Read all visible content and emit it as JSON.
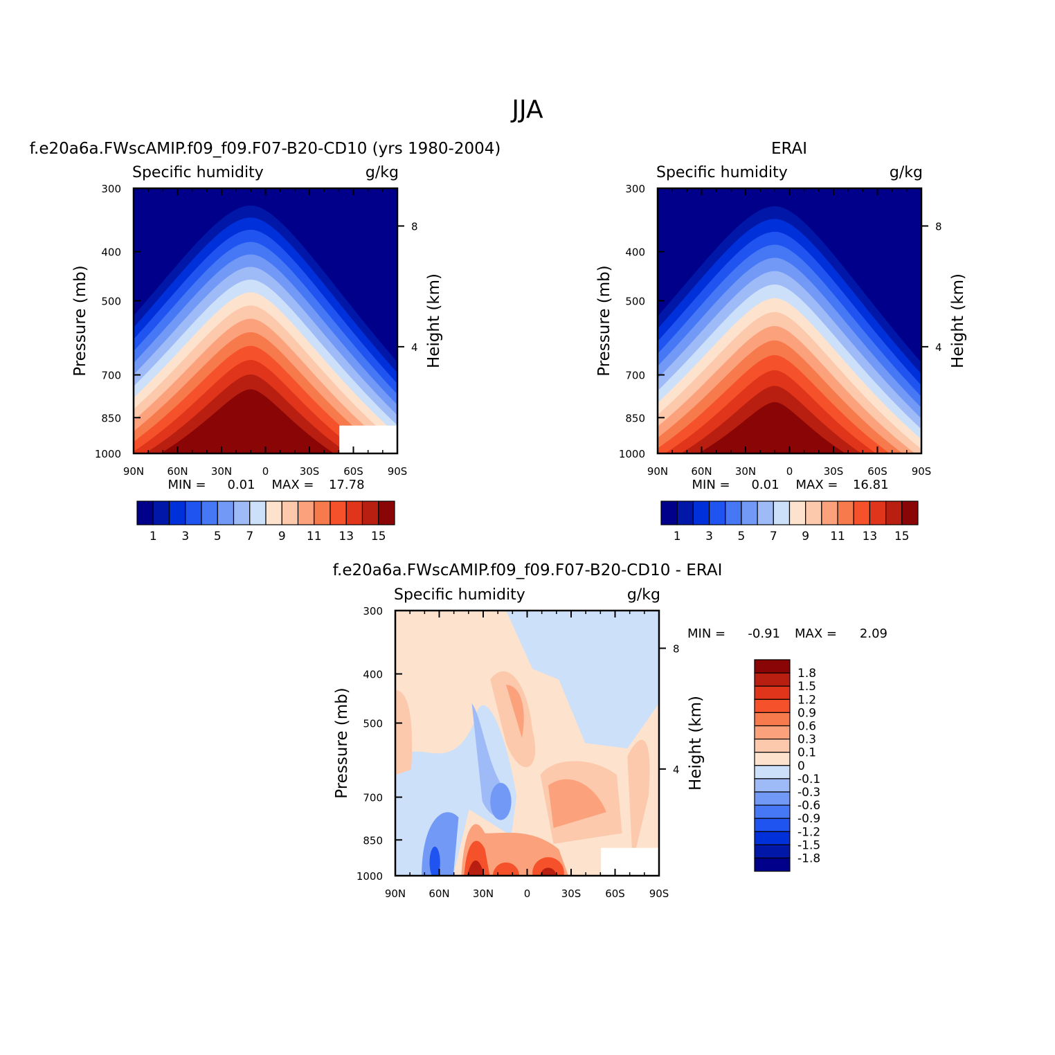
{
  "page_title": "JJA",
  "chart_data": [
    {
      "type": "heatmap",
      "id": "model",
      "title": "f.e20a6a.FWscAMIP.f09_f09.F07-B20-CD10 (yrs 1980-2004)",
      "left_subtitle": "Specific humidity",
      "right_subtitle": "g/kg",
      "ylabel": "Pressure (mb)",
      "ylabel_right": "Height (km)",
      "x_ticks": [
        "90N",
        "60N",
        "30N",
        "0",
        "30S",
        "60S",
        "90S"
      ],
      "y_ticks": [
        "300",
        "400",
        "500",
        "700",
        "850",
        "1000"
      ],
      "y_ticks_right": [
        "8",
        "4"
      ],
      "xlim": [
        90,
        -90
      ],
      "ylim": [
        1000,
        300
      ],
      "y_scale": "log",
      "stats": {
        "min_label": "MIN =",
        "min": "0.01",
        "max_label": "MAX =",
        "max": "17.78"
      },
      "colorbar": {
        "orientation": "horizontal",
        "labels": [
          "1",
          "3",
          "5",
          "7",
          "9",
          "11",
          "13",
          "15"
        ],
        "levels": [
          0,
          1,
          2,
          3,
          4,
          5,
          6,
          7,
          8,
          9,
          10,
          11,
          12,
          13,
          14,
          15,
          16
        ]
      },
      "peak_value": 17.78,
      "peak_lat": 10
    },
    {
      "type": "heatmap",
      "id": "obs",
      "title": "ERAI",
      "left_subtitle": "Specific humidity",
      "right_subtitle": "g/kg",
      "ylabel": "Pressure (mb)",
      "ylabel_right": "Height (km)",
      "x_ticks": [
        "90N",
        "60N",
        "30N",
        "0",
        "30S",
        "60S",
        "90S"
      ],
      "y_ticks": [
        "300",
        "400",
        "500",
        "700",
        "850",
        "1000"
      ],
      "y_ticks_right": [
        "8",
        "4"
      ],
      "xlim": [
        90,
        -90
      ],
      "ylim": [
        1000,
        300
      ],
      "y_scale": "log",
      "stats": {
        "min_label": "MIN =",
        "min": "0.01",
        "max_label": "MAX =",
        "max": "16.81"
      },
      "colorbar": {
        "orientation": "horizontal",
        "labels": [
          "1",
          "3",
          "5",
          "7",
          "9",
          "11",
          "13",
          "15"
        ],
        "levels": [
          0,
          1,
          2,
          3,
          4,
          5,
          6,
          7,
          8,
          9,
          10,
          11,
          12,
          13,
          14,
          15,
          16
        ]
      },
      "peak_value": 16.81,
      "peak_lat": 10
    },
    {
      "type": "heatmap",
      "id": "diff",
      "title": "f.e20a6a.FWscAMIP.f09_f09.F07-B20-CD10 - ERAI",
      "left_subtitle": "Specific humidity",
      "right_subtitle": "g/kg",
      "ylabel": "Pressure (mb)",
      "ylabel_right": "Height (km)",
      "x_ticks": [
        "90N",
        "60N",
        "30N",
        "0",
        "30S",
        "60S",
        "90S"
      ],
      "y_ticks": [
        "300",
        "400",
        "500",
        "700",
        "850",
        "1000"
      ],
      "y_ticks_right": [
        "8",
        "4"
      ],
      "xlim": [
        90,
        -90
      ],
      "ylim": [
        1000,
        300
      ],
      "y_scale": "log",
      "stats": {
        "min_label": "MIN =",
        "min": "-0.91",
        "max_label": "MAX =",
        "max": "2.09"
      },
      "colorbar": {
        "orientation": "vertical",
        "labels": [
          "1.8",
          "1.5",
          "1.2",
          "0.9",
          "0.6",
          "0.3",
          "0.1",
          "0",
          "-0.1",
          "-0.3",
          "-0.6",
          "-0.9",
          "-1.2",
          "-1.5",
          "-1.8"
        ],
        "levels": [
          -1.8,
          -1.5,
          -1.2,
          -0.9,
          -0.6,
          -0.3,
          -0.1,
          0,
          0.1,
          0.3,
          0.6,
          0.9,
          1.2,
          1.5,
          1.8
        ]
      }
    }
  ],
  "colors": {
    "model_scale": [
      "#00008a",
      "#0017a8",
      "#0030d9",
      "#1f54f0",
      "#4677f5",
      "#7299f5",
      "#9fbbf7",
      "#cde0fa",
      "#fde3cd",
      "#fcc9ac",
      "#fba27c",
      "#f77a4d",
      "#f5512a",
      "#e0351a",
      "#b81f10",
      "#8a0505"
    ],
    "diff_scale": [
      "#00008a",
      "#0017a8",
      "#0030d9",
      "#1f54f0",
      "#4677f5",
      "#7299f5",
      "#9fbbf7",
      "#cde0fa",
      "#fde3cd",
      "#fcc9ac",
      "#fba27c",
      "#f77a4d",
      "#f5512a",
      "#e0351a",
      "#b81f10",
      "#8a0505"
    ]
  }
}
